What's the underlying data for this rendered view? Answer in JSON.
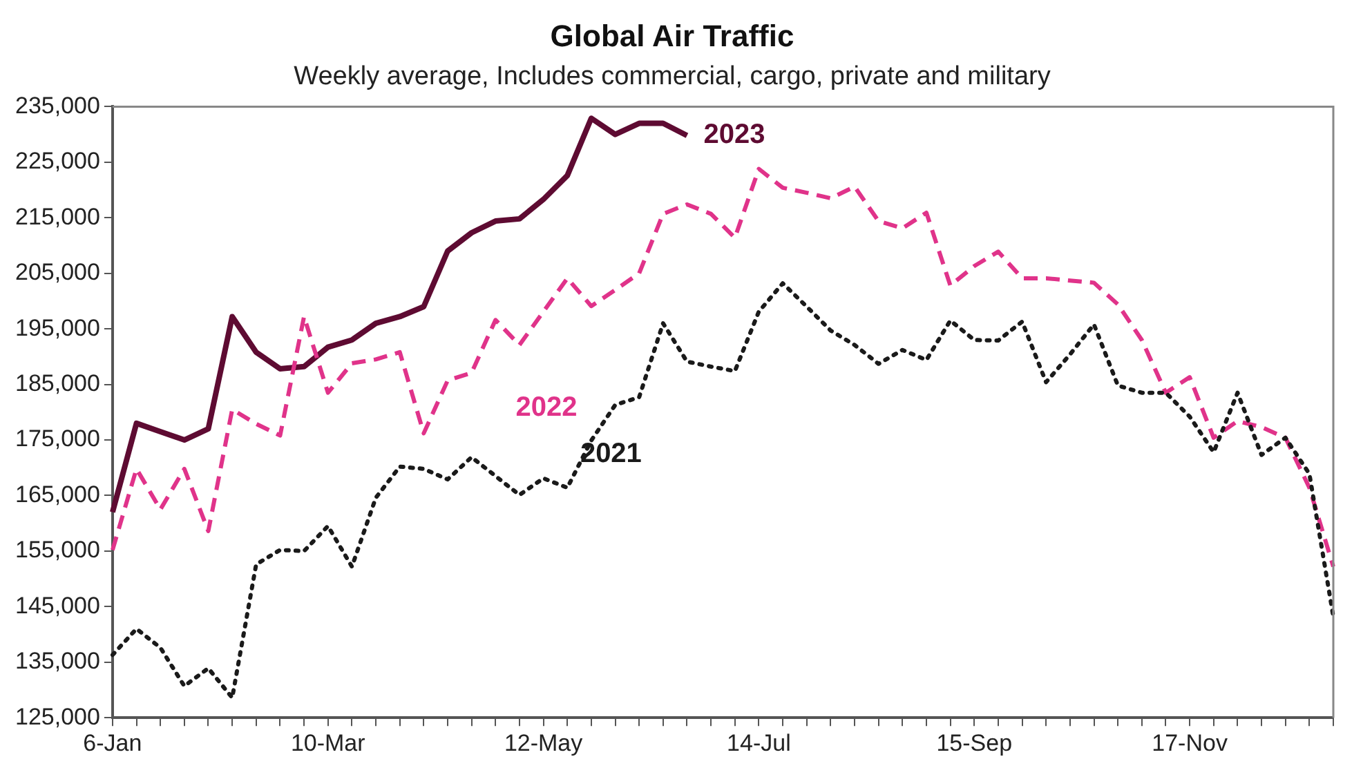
{
  "chart_data": {
    "type": "line",
    "title": "Global Air Traffic",
    "subtitle": "Weekly average, Includes commercial, cargo, private and military",
    "categories": [
      "6-Jan",
      null,
      null,
      null,
      null,
      null,
      null,
      null,
      null,
      "10-Mar",
      null,
      null,
      null,
      null,
      null,
      null,
      null,
      null,
      "12-May",
      null,
      null,
      null,
      null,
      null,
      null,
      null,
      null,
      "14-Jul",
      null,
      null,
      null,
      null,
      null,
      null,
      null,
      null,
      "15-Sep",
      null,
      null,
      null,
      null,
      null,
      null,
      null,
      null,
      "17-Nov",
      null,
      null,
      null,
      null,
      null,
      null
    ],
    "series": [
      {
        "name": "2021",
        "color": "#1a1a1a",
        "line_style": "dotted",
        "values": [
          136300,
          141000,
          137600,
          130700,
          133900,
          128600,
          152600,
          155200,
          155000,
          159500,
          152200,
          164600,
          170200,
          169800,
          167900,
          171900,
          168500,
          165100,
          168100,
          166400,
          174900,
          181300,
          182700,
          196000,
          189100,
          188200,
          187400,
          198100,
          203200,
          199000,
          194700,
          192100,
          188700,
          191200,
          189400,
          196500,
          193000,
          192900,
          196300,
          185400,
          190400,
          195800,
          184800,
          183500,
          183500,
          179200,
          172800,
          183500,
          172300,
          175400,
          168900,
          143200
        ]
      },
      {
        "name": "2022",
        "color": "#e0338a",
        "line_style": "dashed",
        "values": [
          155200,
          169800,
          162500,
          169800,
          158600,
          180500,
          177900,
          175800,
          197200,
          183500,
          188800,
          189500,
          190800,
          176200,
          185700,
          187100,
          196600,
          192100,
          198100,
          204100,
          199100,
          202000,
          205000,
          215700,
          217400,
          215700,
          211400,
          223800,
          220400,
          219500,
          218500,
          220600,
          214400,
          213100,
          215900,
          202800,
          206300,
          208900,
          204100,
          204100,
          203700,
          203300,
          199400,
          193000,
          183500,
          186300,
          175400,
          178400,
          177300,
          175400,
          166400,
          152200
        ]
      },
      {
        "name": "2023",
        "color": "#5e0b32",
        "line_style": "solid",
        "values": [
          162000,
          178000,
          176500,
          175000,
          177000,
          197200,
          190800,
          187800,
          188200,
          191700,
          193000,
          196000,
          197200,
          199000,
          209000,
          212300,
          214400,
          214800,
          218300,
          222600,
          232900,
          230000,
          232000,
          232000,
          229800,
          null,
          null,
          null,
          null,
          null,
          null,
          null,
          null,
          null,
          null,
          null,
          null,
          null,
          null,
          null,
          null,
          null,
          null,
          null,
          null,
          null,
          null,
          null,
          null,
          null,
          null,
          null
        ]
      }
    ],
    "ylim": [
      125000,
      235000
    ],
    "yticks": [
      {
        "value": 125000,
        "label": "125,000"
      },
      {
        "value": 135000,
        "label": "135,000"
      },
      {
        "value": 145000,
        "label": "145,000"
      },
      {
        "value": 155000,
        "label": "155,000"
      },
      {
        "value": 165000,
        "label": "165,000"
      },
      {
        "value": 175000,
        "label": "175,000"
      },
      {
        "value": 185000,
        "label": "185,000"
      },
      {
        "value": 195000,
        "label": "195,000"
      },
      {
        "value": 205000,
        "label": "205,000"
      },
      {
        "value": 215000,
        "label": "215,000"
      },
      {
        "value": 225000,
        "label": "225,000"
      },
      {
        "value": 235000,
        "label": "235,000"
      }
    ],
    "grid": false,
    "legend": false,
    "marker": "none"
  }
}
